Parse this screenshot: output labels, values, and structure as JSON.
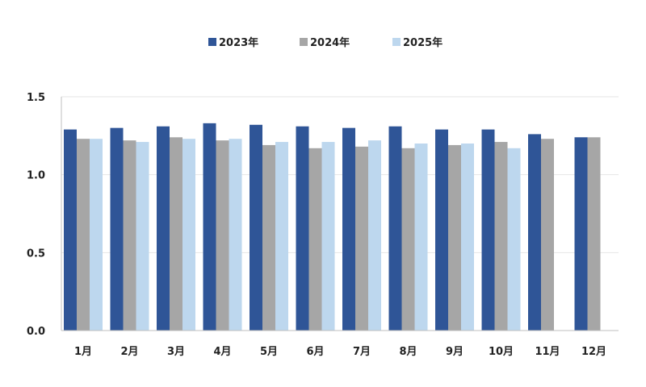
{
  "chart_data": {
    "type": "bar",
    "categories": [
      "1月",
      "2月",
      "3月",
      "4月",
      "5月",
      "6月",
      "7月",
      "8月",
      "9月",
      "10月",
      "11月",
      "12月"
    ],
    "series": [
      {
        "name": "2023年",
        "color": "#2f5597",
        "values": [
          1.29,
          1.3,
          1.31,
          1.33,
          1.32,
          1.31,
          1.3,
          1.31,
          1.29,
          1.29,
          1.26,
          1.24
        ]
      },
      {
        "name": "2024年",
        "color": "#a6a6a6",
        "values": [
          1.23,
          1.22,
          1.24,
          1.22,
          1.19,
          1.17,
          1.18,
          1.17,
          1.19,
          1.21,
          1.23,
          1.24
        ]
      },
      {
        "name": "2025年",
        "color": "#bdd7ee",
        "values": [
          1.23,
          1.21,
          1.23,
          1.23,
          1.21,
          1.21,
          1.22,
          1.2,
          1.2,
          1.17,
          null,
          null
        ]
      }
    ],
    "yticks": [
      "0.0",
      "0.5",
      "1.0",
      "1.5"
    ],
    "ylim": [
      0,
      1.5
    ],
    "grid": true,
    "legend": "top-center"
  }
}
